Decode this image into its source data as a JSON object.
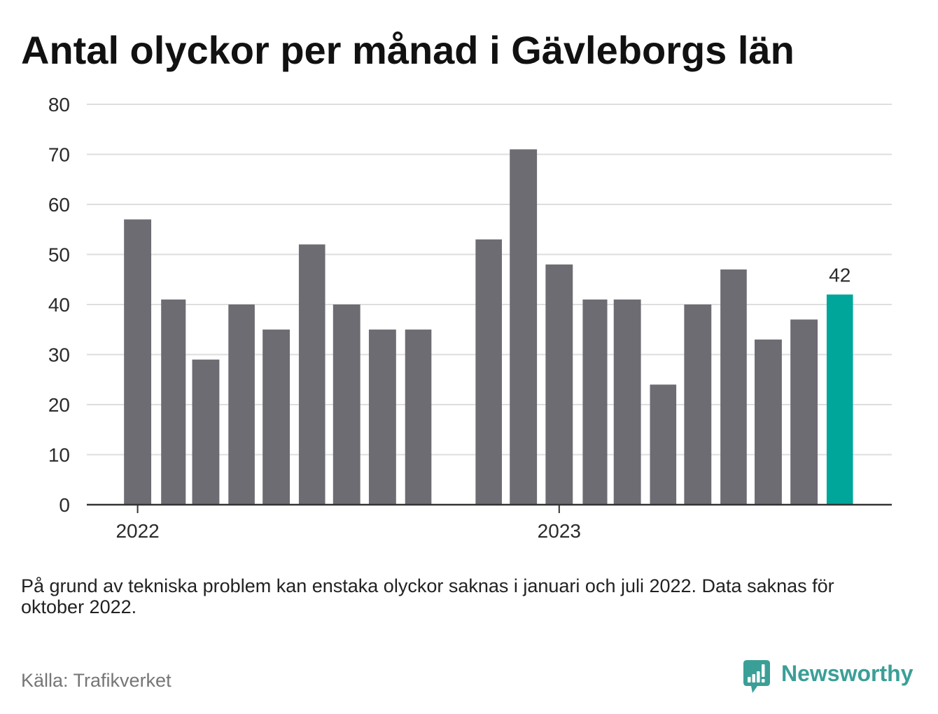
{
  "chart_data": {
    "type": "bar",
    "title": "Antal olyckor per månad i Gävleborgs län",
    "x": [
      "2022-01",
      "2022-02",
      "2022-03",
      "2022-04",
      "2022-05",
      "2022-06",
      "2022-07",
      "2022-08",
      "2022-09",
      "2022-10",
      "2022-11",
      "2022-12",
      "2023-01",
      "2023-02",
      "2023-03",
      "2023-04",
      "2023-05",
      "2023-06",
      "2023-07",
      "2023-08",
      "2023-09"
    ],
    "values": [
      57,
      41,
      29,
      40,
      35,
      52,
      40,
      35,
      35,
      null,
      53,
      71,
      48,
      41,
      41,
      24,
      40,
      47,
      33,
      37,
      42
    ],
    "xlim": [
      "2021-11-18",
      "2023-10-16"
    ],
    "ylim": [
      0,
      80
    ],
    "yticks": [
      0,
      10,
      20,
      30,
      40,
      50,
      60,
      70,
      80
    ],
    "xticks": [
      "2022",
      "2023"
    ],
    "highlighted": "2023-09",
    "data_labels": [
      {
        "x": "2023-09",
        "text": "42"
      }
    ],
    "grid": true,
    "colors": {
      "bar": "#6d6c73",
      "highlight": "#00a699",
      "grid": "#dedede",
      "axis": "#333333"
    }
  },
  "footnote": "På grund av tekniska problem kan enstaka olyckor saknas i januari och juli 2022. Data saknas för oktober 2022.",
  "source": "Källa: Trafikverket",
  "logo": {
    "text": "Newsworthy",
    "icon": "chart-bubble-icon",
    "color": "#3a9f97"
  }
}
